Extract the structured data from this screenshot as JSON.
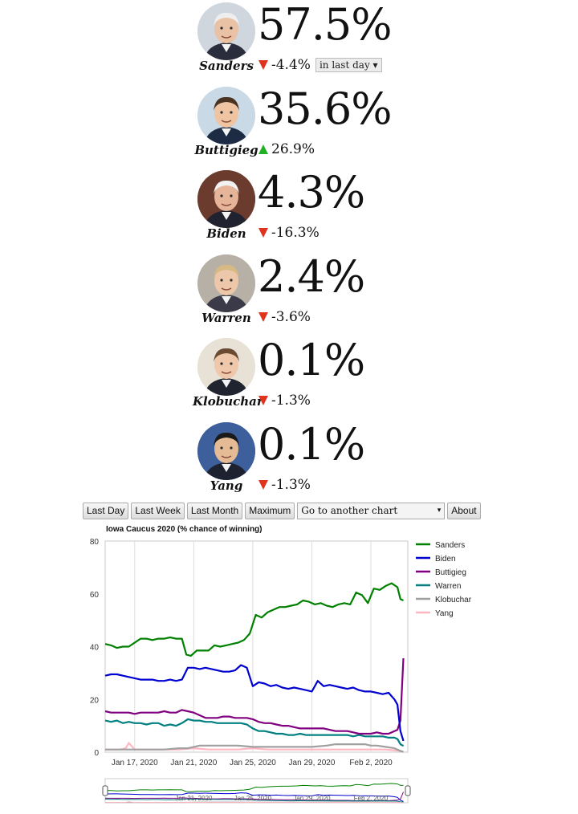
{
  "candidates": [
    {
      "name": "Sanders",
      "pct": "57.5%",
      "change": "-4.4%",
      "dir": "down",
      "avatar_icon": "sanders-portrait",
      "bg": "#cfd6de",
      "skin": "#e9c1a5",
      "hair": "#eeeeee",
      "shirt": "#2a2d3b"
    },
    {
      "name": "Buttigieg",
      "pct": "35.6%",
      "change": "26.9%",
      "dir": "up",
      "avatar_icon": "buttigieg-portrait",
      "bg": "#c9d9e6",
      "skin": "#efc4a3",
      "hair": "#4a3322",
      "shirt": "#1d2b44"
    },
    {
      "name": "Biden",
      "pct": "4.3%",
      "change": "-16.3%",
      "dir": "down",
      "avatar_icon": "biden-portrait",
      "bg": "#6b3b2e",
      "skin": "#e6b599",
      "hair": "#f2f2f2",
      "shirt": "#20232f"
    },
    {
      "name": "Warren",
      "pct": "2.4%",
      "change": "-3.6%",
      "dir": "down",
      "avatar_icon": "warren-portrait",
      "bg": "#b7b0a6",
      "skin": "#ecc7aa",
      "hair": "#d7b983",
      "shirt": "#3a3a48"
    },
    {
      "name": "Klobuchar",
      "pct": "0.1%",
      "change": "-1.3%",
      "dir": "down",
      "avatar_icon": "klobuchar-portrait",
      "bg": "#e7e1d6",
      "skin": "#efc7ab",
      "hair": "#6a4a30",
      "shirt": "#20242e"
    },
    {
      "name": "Yang",
      "pct": "0.1%",
      "change": "-1.3%",
      "dir": "down",
      "avatar_icon": "yang-portrait",
      "bg": "#3d5f9c",
      "skin": "#e4bb95",
      "hair": "#1a1a1a",
      "shirt": "#1e2230"
    }
  ],
  "period_select": {
    "label": "in last day ▾"
  },
  "toolbar": {
    "last_day": "Last Day",
    "last_week": "Last Week",
    "last_month": "Last Month",
    "maximum": "Maximum",
    "goto": "Go to another chart",
    "goto_caret": "▾",
    "about": "About"
  },
  "colors": {
    "up": "#22b027",
    "down": "#e0331d"
  },
  "chart_data": {
    "type": "line",
    "title": "Iowa Caucus 2020 (% chance of winning)",
    "ylim": [
      0,
      80
    ],
    "yticks": [
      0,
      20,
      40,
      60,
      80
    ],
    "xlim": [
      0,
      20.5
    ],
    "xtick_labels": [
      "Jan 17, 2020",
      "Jan 21, 2020",
      "Jan 25, 2020",
      "Jan 29, 2020",
      "Feb 2, 2020"
    ],
    "xtick_values": [
      2,
      6,
      10,
      14,
      18
    ],
    "nav_tick_labels": [
      "Jan 21, 2020",
      "Jan 25, 2020",
      "Jan 29, 2020",
      "Feb 2, 2020"
    ],
    "legend_position": "right",
    "grid": "vertical",
    "series": [
      {
        "name": "Sanders",
        "color": "#008000",
        "x": [
          0,
          0.4,
          0.8,
          1.2,
          1.6,
          2,
          2.4,
          2.8,
          3.2,
          3.6,
          4,
          4.4,
          4.8,
          5.2,
          5.5,
          5.8,
          6.2,
          6.6,
          7,
          7.4,
          7.8,
          8.2,
          8.6,
          9,
          9.4,
          9.8,
          10.2,
          10.6,
          11,
          11.4,
          11.8,
          12.2,
          12.6,
          13,
          13.4,
          13.8,
          14.2,
          14.6,
          15,
          15.4,
          15.8,
          16.2,
          16.6,
          17,
          17.4,
          17.8,
          18.2,
          18.6,
          19,
          19.4,
          19.8,
          20,
          20.2
        ],
        "y": [
          41,
          40.5,
          39.5,
          40,
          40,
          41.5,
          43,
          43,
          42.5,
          43,
          43,
          43.5,
          43,
          43,
          37,
          36.5,
          38.5,
          38.5,
          38.5,
          40.5,
          40,
          40.5,
          41,
          41.5,
          42.5,
          45,
          52,
          51,
          53,
          54,
          55,
          55,
          55.5,
          56,
          57.5,
          57,
          56,
          56.5,
          55.5,
          55,
          56,
          56.5,
          56,
          60.5,
          59.5,
          56.5,
          62,
          61.5,
          63,
          64,
          62.5,
          58,
          57.5
        ]
      },
      {
        "name": "Biden",
        "color": "#0000d0",
        "x": [
          0,
          0.4,
          0.8,
          1.2,
          1.6,
          2,
          2.4,
          2.8,
          3.2,
          3.6,
          4,
          4.4,
          4.8,
          5.2,
          5.6,
          6,
          6.4,
          6.8,
          7.2,
          7.6,
          8,
          8.4,
          8.8,
          9.2,
          9.6,
          10,
          10.4,
          10.8,
          11.2,
          11.6,
          12,
          12.4,
          12.8,
          13.2,
          13.6,
          14,
          14.4,
          14.8,
          15.2,
          15.6,
          16,
          16.4,
          16.8,
          17.2,
          17.6,
          18,
          18.4,
          18.8,
          19.2,
          19.6,
          19.8,
          20,
          20.2
        ],
        "y": [
          29,
          29.5,
          29.5,
          29,
          28.5,
          28,
          27.5,
          27.5,
          27.5,
          27,
          27,
          27.5,
          27,
          27.5,
          32,
          32,
          31.5,
          32,
          31.5,
          31,
          30.5,
          30.5,
          31,
          33,
          32,
          25,
          26.5,
          26,
          25,
          25.5,
          24.5,
          24,
          24.5,
          24,
          23.5,
          23,
          27,
          25,
          25.5,
          25,
          24.5,
          24,
          24.5,
          23.5,
          23,
          23,
          22.5,
          22,
          22.5,
          20,
          18,
          8,
          4.3
        ]
      },
      {
        "name": "Buttigieg",
        "color": "#800080",
        "x": [
          0,
          0.4,
          0.8,
          1.2,
          1.6,
          2,
          2.4,
          2.8,
          3.2,
          3.6,
          4,
          4.4,
          4.8,
          5.2,
          5.6,
          6,
          6.4,
          6.8,
          7.2,
          7.6,
          8,
          8.4,
          8.8,
          9.2,
          9.6,
          10,
          10.4,
          10.8,
          11.2,
          11.6,
          12,
          12.4,
          12.8,
          13.2,
          13.6,
          14,
          14.4,
          14.8,
          15.2,
          15.6,
          16,
          16.4,
          16.8,
          17.2,
          17.6,
          18,
          18.4,
          18.8,
          19.2,
          19.6,
          19.8,
          20,
          20.2
        ],
        "y": [
          15.5,
          15,
          15,
          15,
          15,
          14.5,
          15,
          15,
          15,
          15,
          15.5,
          15,
          15,
          16,
          15.5,
          15,
          14,
          13,
          13,
          13,
          13.5,
          13.5,
          13,
          13,
          13,
          12.5,
          11.5,
          11,
          11,
          10.5,
          10,
          10,
          9.5,
          9,
          9,
          9,
          9,
          9,
          8.5,
          8,
          8,
          8,
          7.5,
          7,
          7,
          7,
          7.5,
          7,
          7,
          8,
          8.5,
          12,
          35.6
        ]
      },
      {
        "name": "Warren",
        "color": "#008080",
        "x": [
          0,
          0.4,
          0.8,
          1.2,
          1.6,
          2,
          2.4,
          2.8,
          3.2,
          3.6,
          4,
          4.4,
          4.8,
          5.2,
          5.6,
          6,
          6.4,
          6.8,
          7.2,
          7.6,
          8,
          8.4,
          8.8,
          9.2,
          9.6,
          10,
          10.4,
          10.8,
          11.2,
          11.6,
          12,
          12.4,
          12.8,
          13.2,
          13.6,
          14,
          14.4,
          14.8,
          15.2,
          15.6,
          16,
          16.4,
          16.8,
          17.2,
          17.6,
          18,
          18.4,
          18.8,
          19.2,
          19.6,
          19.8,
          20,
          20.2
        ],
        "y": [
          12,
          11.5,
          12,
          11,
          11.5,
          11,
          11,
          10.5,
          11,
          11,
          10,
          10.5,
          10,
          11,
          12.5,
          12,
          12,
          11.5,
          11.5,
          11,
          11,
          11,
          11,
          11,
          10.5,
          9,
          8,
          8,
          7.5,
          7,
          7,
          6.5,
          6.5,
          7,
          6.5,
          6.5,
          6.5,
          6.5,
          6.5,
          6.5,
          6.5,
          6.5,
          6,
          6.5,
          6,
          6,
          6,
          6,
          5.5,
          5.5,
          5,
          3,
          2.4
        ]
      },
      {
        "name": "Klobuchar",
        "color": "#a0a0a0",
        "x": [
          0,
          1,
          2,
          3,
          4,
          5,
          5.6,
          6,
          6.4,
          7,
          8,
          9,
          10,
          11,
          12,
          13,
          14,
          15,
          15.6,
          16,
          16.6,
          17,
          17.6,
          18,
          18.4,
          19,
          19.6,
          20,
          20.2
        ],
        "y": [
          1,
          1,
          1,
          1,
          1,
          1.5,
          1.5,
          2,
          2.5,
          2.5,
          2.5,
          2.5,
          2,
          2,
          2,
          2,
          2,
          2.5,
          3,
          3,
          3,
          3,
          3,
          2.5,
          2.5,
          2,
          1.5,
          0.5,
          0.1
        ]
      },
      {
        "name": "Yang",
        "color": "#ffb6c1",
        "x": [
          0,
          1,
          1.4,
          1.6,
          2,
          3,
          4,
          5,
          6,
          7,
          8,
          9,
          10,
          11,
          12,
          13,
          14,
          15,
          16,
          17,
          18,
          19,
          20,
          20.2
        ],
        "y": [
          1,
          1,
          1.5,
          3.5,
          1,
          1,
          1,
          1,
          1.5,
          1,
          1,
          1,
          1.5,
          1,
          1,
          1,
          1,
          1,
          1,
          1,
          1,
          1,
          0.5,
          0.1
        ]
      }
    ]
  }
}
